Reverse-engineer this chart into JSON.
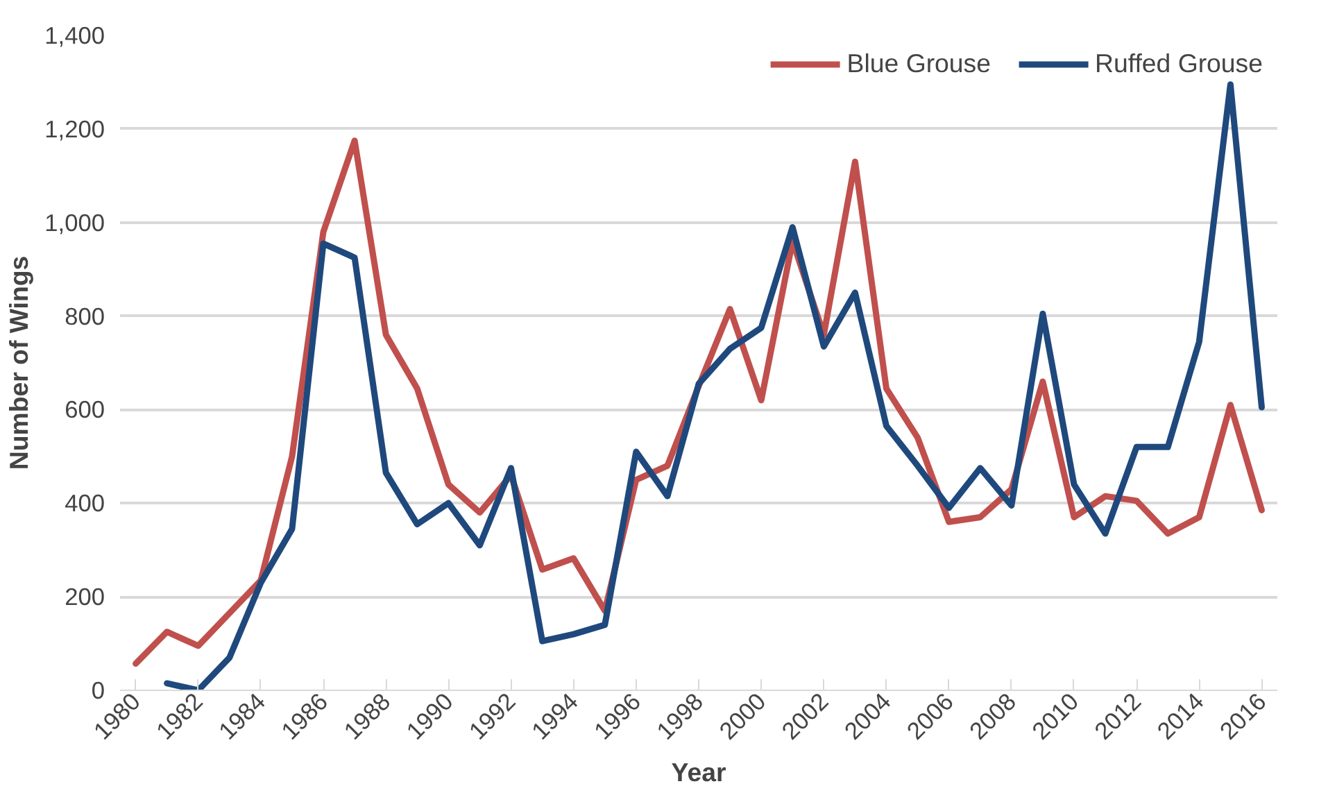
{
  "chart_data": {
    "type": "line",
    "xlabel": "Year",
    "ylabel": "Number of Wings",
    "x": [
      1980,
      1981,
      1982,
      1983,
      1984,
      1985,
      1986,
      1987,
      1988,
      1989,
      1990,
      1991,
      1992,
      1993,
      1994,
      1995,
      1996,
      1997,
      1998,
      1999,
      2000,
      2001,
      2002,
      2003,
      2004,
      2005,
      2006,
      2007,
      2008,
      2009,
      2010,
      2011,
      2012,
      2013,
      2014,
      2015,
      2016
    ],
    "series": [
      {
        "name": "Blue Grouse",
        "color": "#c0504d",
        "values": [
          57,
          125,
          95,
          165,
          235,
          500,
          980,
          1175,
          760,
          645,
          440,
          380,
          460,
          258,
          282,
          170,
          450,
          480,
          650,
          815,
          620,
          960,
          760,
          1130,
          645,
          540,
          360,
          370,
          430,
          660,
          370,
          415,
          405,
          335,
          370,
          610,
          385
        ]
      },
      {
        "name": "Ruffed Grouse",
        "color": "#1f497d",
        "values": [
          null,
          15,
          0,
          70,
          230,
          345,
          955,
          925,
          465,
          355,
          400,
          310,
          475,
          105,
          120,
          140,
          510,
          415,
          655,
          730,
          775,
          990,
          735,
          850,
          565,
          480,
          390,
          475,
          395,
          805,
          440,
          335,
          520,
          520,
          745,
          1295,
          605
        ]
      }
    ],
    "xlim": [
      1979.5,
      2016.5
    ],
    "xticks": [
      1980,
      1982,
      1984,
      1986,
      1988,
      1990,
      1992,
      1994,
      1996,
      1998,
      2000,
      2002,
      2004,
      2006,
      2008,
      2010,
      2012,
      2014,
      2016
    ],
    "ylim": [
      0,
      1400
    ],
    "yticks": [
      {
        "value": 0,
        "label": "0"
      },
      {
        "value": 200,
        "label": "200"
      },
      {
        "value": 400,
        "label": "400"
      },
      {
        "value": 600,
        "label": "600"
      },
      {
        "value": 800,
        "label": "800"
      },
      {
        "value": 1000,
        "label": "1,000"
      },
      {
        "value": 1200,
        "label": "1,200"
      },
      {
        "value": 1400,
        "label": "1,400"
      }
    ],
    "grid": "y",
    "legend": "top right",
    "marker": "none",
    "line_style": "solid"
  }
}
